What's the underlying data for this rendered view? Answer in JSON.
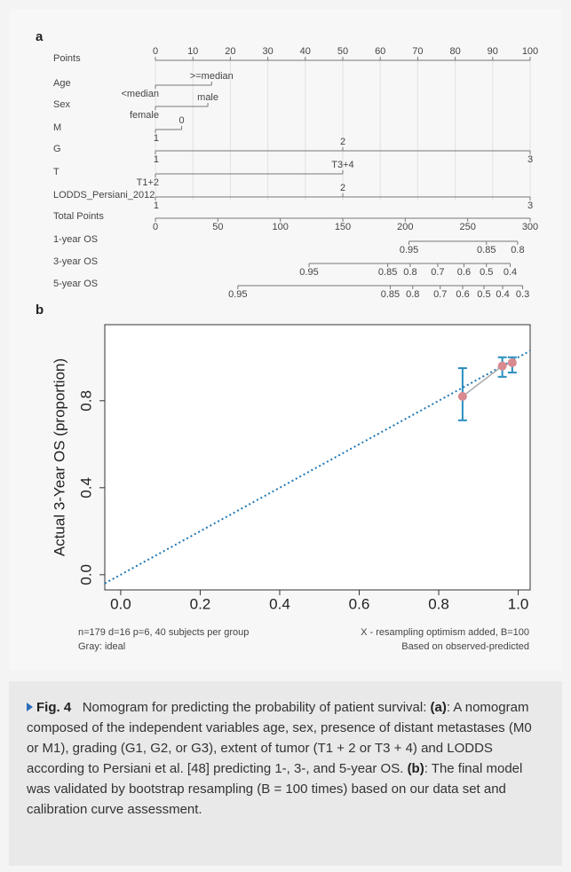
{
  "chart_data": [
    {
      "type": "nomogram",
      "panel": "a",
      "xlim": [
        0,
        100
      ],
      "x2lim": [
        0,
        300
      ],
      "grid": true,
      "rows": [
        {
          "name": "Points",
          "axis": "x",
          "ticks": [
            0,
            10,
            20,
            30,
            40,
            50,
            60,
            70,
            80,
            90,
            100
          ]
        },
        {
          "name": "Age",
          "axis": "x",
          "ticks": [
            {
              "value": 0,
              "label": "<median"
            },
            {
              "value": 15,
              "label": ">=median"
            }
          ]
        },
        {
          "name": "Sex",
          "axis": "x",
          "ticks": [
            {
              "value": 0,
              "label": "female"
            },
            {
              "value": 14,
              "label": "male"
            }
          ]
        },
        {
          "name": "M",
          "axis": "x",
          "ticks": [
            {
              "value": 0,
              "label": "1"
            },
            {
              "value": 7,
              "label": "0"
            }
          ]
        },
        {
          "name": "G",
          "axis": "x",
          "ticks": [
            {
              "value": 0,
              "label": "1"
            },
            {
              "value": 50,
              "label": "2"
            },
            {
              "value": 100,
              "label": "3"
            }
          ]
        },
        {
          "name": "T",
          "axis": "x",
          "ticks": [
            {
              "value": 0,
              "label": "T1+2"
            },
            {
              "value": 50,
              "label": "T3+4"
            }
          ]
        },
        {
          "name": "LODDS_Persiani_2012",
          "axis": "x",
          "ticks": [
            {
              "value": 0,
              "label": "1"
            },
            {
              "value": 50,
              "label": "2"
            },
            {
              "value": 100,
              "label": "3"
            }
          ]
        },
        {
          "name": "Total Points",
          "axis": "x2",
          "ticks": [
            0,
            50,
            100,
            150,
            200,
            250,
            300
          ]
        },
        {
          "name": "1-year OS",
          "axis": "x2",
          "ticks": [
            {
              "value": 203,
              "label": "0.95"
            },
            {
              "value": 265,
              "label": "0.85"
            },
            {
              "value": 290,
              "label": "0.8"
            }
          ]
        },
        {
          "name": "3-year OS",
          "axis": "x2",
          "ticks": [
            {
              "value": 123,
              "label": "0.95"
            },
            {
              "value": 186,
              "label": "0.85"
            },
            {
              "value": 204,
              "label": "0.8"
            },
            {
              "value": 226,
              "label": "0.7"
            },
            {
              "value": 247,
              "label": "0.6"
            },
            {
              "value": 265,
              "label": "0.5"
            },
            {
              "value": 284,
              "label": "0.4"
            }
          ]
        },
        {
          "name": "5-year OS",
          "axis": "x2",
          "ticks": [
            {
              "value": 66,
              "label": "0.95"
            },
            {
              "value": 188,
              "label": "0.85"
            },
            {
              "value": 206,
              "label": "0.8"
            },
            {
              "value": 228,
              "label": "0.7"
            },
            {
              "value": 246,
              "label": "0.6"
            },
            {
              "value": 263,
              "label": "0.5"
            },
            {
              "value": 278,
              "label": "0.4"
            },
            {
              "value": 294,
              "label": "0.3"
            }
          ]
        }
      ]
    },
    {
      "type": "calibration",
      "panel": "b",
      "ylabel": "Actual 3-Year OS (proportion)",
      "xlim": [
        -0.04,
        1.03
      ],
      "ylim": [
        -0.07,
        1.15
      ],
      "xticks": [
        {
          "value": 0,
          "label": "0.0"
        },
        0.2,
        0.4,
        0.6,
        0.8,
        {
          "value": 1,
          "label": "1.0"
        }
      ],
      "yticks": [
        {
          "value": 0,
          "label": "0.0"
        },
        0.4,
        0.8
      ],
      "x": [
        0.86,
        0.96,
        0.985
      ],
      "values": [
        0.82,
        0.96,
        0.975
      ],
      "lower": [
        0.71,
        0.91,
        0.93
      ],
      "upper": [
        0.95,
        1.0,
        1.0
      ],
      "color": "#d98a90",
      "error_color": "#2a8fbf",
      "line_color": "#aaaaaa",
      "ideal_color": "#1f77b4",
      "notes": [
        "n=179 d=16 p=6, 40 subjects per group",
        "X - resampling optimism added, B=100",
        "Gray: ideal",
        "Based on observed-predicted"
      ]
    }
  ],
  "caption": {
    "label": "Fig. 4",
    "intro": "Nomogram for predicting the probability of patient survival:",
    "tag_a": "(a)",
    "text_a": ": A nomogram composed of the independent variables age, sex, presence of distant metastases (M0 or M1), grading (G1, G2, or G3), extent of tumor (T1 + 2 or T3 + 4) and LODDS according to Persiani et al. [48] predicting 1-, 3-, and 5-year OS.",
    "tag_b": "(b)",
    "text_b": ": The final model was validated by bootstrap resampling (B = 100 times) based on our data set and calibration curve assessment."
  }
}
